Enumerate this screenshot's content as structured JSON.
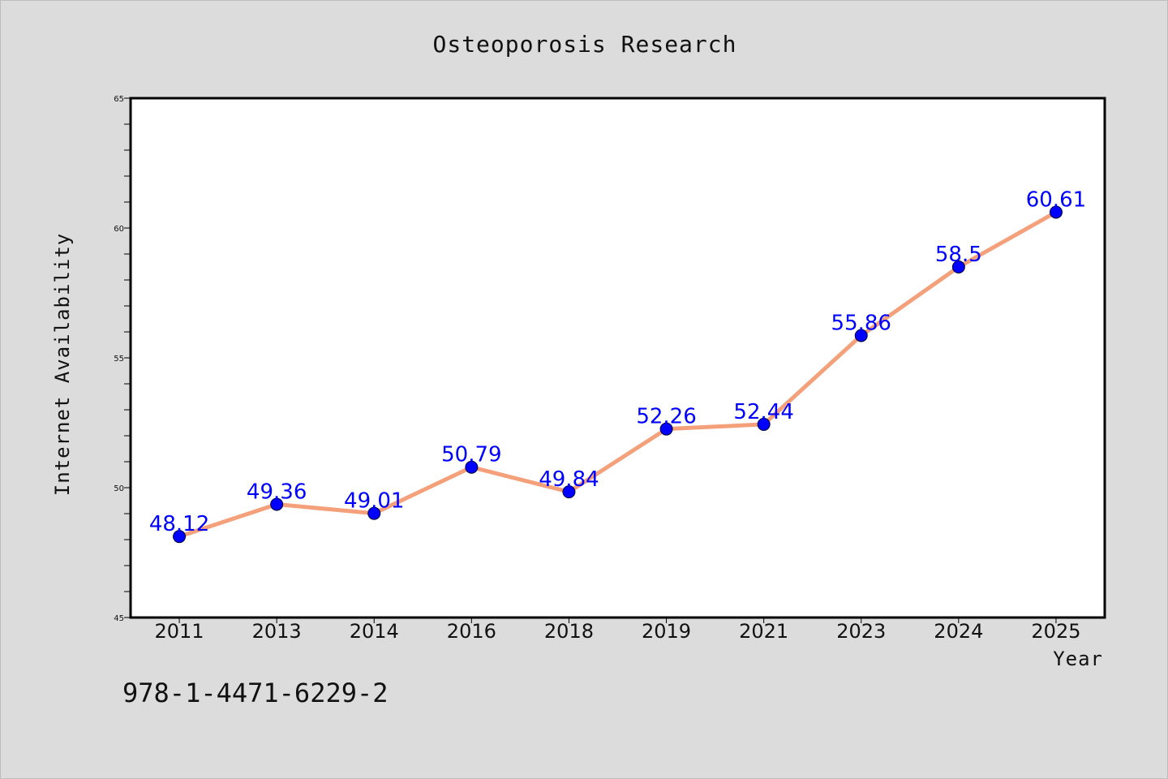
{
  "chart_data": {
    "type": "line",
    "title": "Osteoporosis Research",
    "xlabel": "Year",
    "ylabel": "Internet Availability",
    "categories": [
      "2011",
      "2013",
      "2014",
      "2016",
      "2018",
      "2019",
      "2021",
      "2023",
      "2024",
      "2025"
    ],
    "values": [
      48.12,
      49.36,
      49.01,
      50.79,
      49.84,
      52.26,
      52.44,
      55.86,
      58.5,
      60.61
    ],
    "data_labels": [
      "48.12",
      "49.36",
      "49.01",
      "50.79",
      "49.84",
      "52.26",
      "52.44",
      "55.86",
      "58.5",
      "60.61"
    ],
    "ylim": [
      45,
      65
    ],
    "yticks": [
      "45",
      "50",
      "55",
      "60",
      "65"
    ],
    "grid": false,
    "legend": "none",
    "colors": {
      "line": "#f4a07a",
      "marker": "#0000ff",
      "label": "#0000ff"
    }
  },
  "footer": {
    "isbn": "978-1-4471-6229-2"
  }
}
